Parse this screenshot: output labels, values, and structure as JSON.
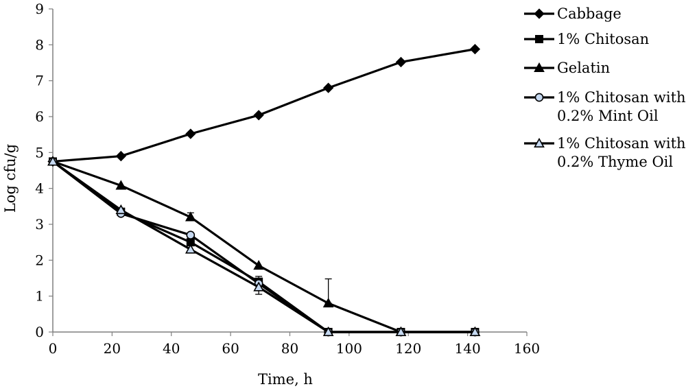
{
  "chart_data": {
    "type": "line",
    "xlabel": "Time, h",
    "ylabel": "Log cfu/g",
    "xlim": [
      0,
      160
    ],
    "ylim": [
      0,
      9
    ],
    "x_ticks": [
      0,
      20,
      40,
      60,
      80,
      100,
      120,
      140,
      160
    ],
    "y_ticks": [
      0,
      1,
      2,
      3,
      4,
      5,
      6,
      7,
      8,
      9
    ],
    "grid": false,
    "legend_position": "right",
    "series": [
      {
        "name": "Cabbage",
        "marker": "diamond",
        "points": [
          [
            0,
            4.75
          ],
          [
            23,
            4.9
          ],
          [
            46.5,
            5.52
          ],
          [
            69.5,
            6.04
          ],
          [
            93,
            6.8
          ],
          [
            117.5,
            7.52
          ],
          [
            142.5,
            7.88
          ]
        ]
      },
      {
        "name": "1% Chitosan",
        "marker": "square",
        "points": [
          [
            0,
            4.75
          ],
          [
            23,
            3.35
          ],
          [
            46.5,
            2.5
          ],
          [
            69.5,
            1.4
          ],
          [
            93,
            0
          ],
          [
            117.5,
            0
          ],
          [
            142.5,
            0
          ]
        ]
      },
      {
        "name": "Gelatin",
        "marker": "triangle",
        "points": [
          [
            0,
            4.75
          ],
          [
            23,
            4.08
          ],
          [
            46.5,
            3.2
          ],
          [
            69.5,
            1.85
          ],
          [
            93,
            0.8
          ],
          [
            117.5,
            0
          ],
          [
            142.5,
            0
          ]
        ]
      },
      {
        "name": "1% Chitosan with 0.2% Mint Oil",
        "marker": "circle-open",
        "points": [
          [
            0,
            4.75
          ],
          [
            23,
            3.3
          ],
          [
            46.5,
            2.7
          ],
          [
            69.5,
            1.35
          ],
          [
            93,
            0
          ],
          [
            117.5,
            0
          ],
          [
            142.5,
            0
          ]
        ]
      },
      {
        "name": "1% Chitosan with 0.2% Thyme Oil",
        "marker": "triangle-open",
        "points": [
          [
            0,
            4.75
          ],
          [
            23,
            3.4
          ],
          [
            46.5,
            2.3
          ],
          [
            69.5,
            1.25
          ],
          [
            93,
            0
          ],
          [
            117.5,
            0
          ],
          [
            142.5,
            0
          ]
        ]
      }
    ],
    "error_bars": [
      {
        "x": 46.5,
        "low": 3.1,
        "high": 3.32
      },
      {
        "x": 69.5,
        "low": 1.05,
        "high": 1.55
      },
      {
        "x": 93,
        "low": 0.8,
        "high": 1.48
      }
    ],
    "colors": {
      "line": "#000000",
      "open_marker_fill": "#c6d9f1",
      "axis": "#7f7f7f"
    }
  }
}
